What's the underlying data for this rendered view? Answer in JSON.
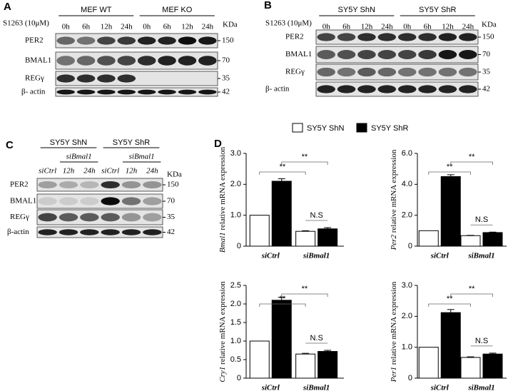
{
  "panels": [
    {
      "label": "A",
      "groups": [
        "MEF  WT",
        "MEF  KO"
      ],
      "treatment": "S1263 (10μM)",
      "lanes": [
        "0h",
        "6h",
        "12h",
        "24h",
        "0h",
        "6h",
        "12h",
        "24h"
      ],
      "kda_header": "KDa",
      "rows": [
        {
          "protein": "PER2",
          "kda": "150"
        },
        {
          "protein": "BMAL1",
          "kda": "70"
        },
        {
          "protein": "REGγ",
          "kda": "35"
        },
        {
          "protein": "β- actin",
          "kda": "42"
        }
      ]
    },
    {
      "label": "B",
      "groups": [
        "SY5Y ShN",
        "SY5Y ShR"
      ],
      "treatment": "S1263 (10μM)",
      "lanes": [
        "0h",
        "6h",
        "12h",
        "24h",
        "0h",
        "6h",
        "12h",
        "24h"
      ],
      "kda_header": "KDa",
      "rows": [
        {
          "protein": "PER2",
          "kda": "150"
        },
        {
          "protein": "BMAL1",
          "kda": "70"
        },
        {
          "protein": "REGγ",
          "kda": "35"
        },
        {
          "protein": "β- actin",
          "kda": "42"
        }
      ]
    },
    {
      "label": "C",
      "groups": [
        "SY5Y ShN",
        "SY5Y ShR"
      ],
      "subgroups": [
        "siBmal1",
        "siBmal1"
      ],
      "lanes": [
        "siCtrl",
        "12h",
        "24h",
        "siCtrl",
        "12h",
        "24h"
      ],
      "kda_header": "KDa",
      "rows": [
        {
          "protein": "PER2",
          "kda": "150"
        },
        {
          "protein": "BMAL1",
          "kda": "70"
        },
        {
          "protein": "REGγ",
          "kda": "35"
        },
        {
          "protein": "β-actin",
          "kda": "42"
        }
      ]
    }
  ],
  "panel_d_label": "D",
  "chart_data": [
    {
      "type": "bar",
      "y_label_gene": "Bmal1",
      "y_label": " relative mRNA expression",
      "categories": [
        "siCtrl",
        "siBmal1"
      ],
      "series": [
        {
          "name": "SY5Y ShN",
          "color": "#ffffff",
          "values": [
            1.0,
            0.48
          ],
          "errors": [
            0,
            0.02
          ]
        },
        {
          "name": "SY5Y ShR",
          "color": "#000000",
          "values": [
            2.1,
            0.56
          ],
          "errors": [
            0.08,
            0.04
          ]
        }
      ],
      "ylim": [
        0,
        3
      ],
      "yticks": [
        0,
        {
          "value": 1,
          "label": "1.0"
        },
        {
          "value": 2,
          "label": "2.0"
        },
        {
          "value": 3,
          "label": "3.0"
        }
      ],
      "annotations": [
        "**",
        "**",
        "N.S"
      ]
    },
    {
      "type": "bar",
      "y_label_gene": "Per2",
      "y_label": " relative mRNA expression",
      "categories": [
        "siCtrl",
        "siBmal1"
      ],
      "series": [
        {
          "color": "#ffffff",
          "values": [
            1.0,
            0.68
          ],
          "errors": [
            0,
            0.02
          ]
        },
        {
          "color": "#000000",
          "values": [
            4.5,
            0.88
          ],
          "errors": [
            0.12,
            0.03
          ]
        }
      ],
      "ylim": [
        0,
        6
      ],
      "yticks": [
        0,
        {
          "value": 2,
          "label": "2.0"
        },
        {
          "value": 4,
          "label": "4.0"
        },
        {
          "value": 6,
          "label": "6.0"
        }
      ],
      "annotations": [
        "**",
        "**",
        "N.S"
      ]
    },
    {
      "type": "bar",
      "y_label_gene": "Cry1",
      "y_label": " relative mRNA expression",
      "categories": [
        "siCtrl",
        "siBmal1"
      ],
      "series": [
        {
          "color": "#ffffff",
          "values": [
            1.0,
            0.65
          ],
          "errors": [
            0,
            0.02
          ]
        },
        {
          "color": "#000000",
          "values": [
            2.1,
            0.72
          ],
          "errors": [
            0.08,
            0.03
          ]
        }
      ],
      "ylim": [
        0,
        2.5
      ],
      "yticks": [
        0,
        0.5,
        {
          "value": 1,
          "label": "1.0"
        },
        1.5,
        {
          "value": 2,
          "label": "2.0"
        },
        2.5
      ],
      "annotations": [
        "**",
        "**",
        "N.S"
      ]
    },
    {
      "type": "bar",
      "y_label_gene": "Per1",
      "y_label": " relative mRNA expression",
      "categories": [
        "siCtrl",
        "siBmal1"
      ],
      "series": [
        {
          "color": "#ffffff",
          "values": [
            1.0,
            0.67
          ],
          "errors": [
            0,
            0.02
          ]
        },
        {
          "color": "#000000",
          "values": [
            2.12,
            0.78
          ],
          "errors": [
            0.1,
            0.03
          ]
        }
      ],
      "ylim": [
        0,
        3
      ],
      "yticks": [
        0,
        {
          "value": 1,
          "label": "1.0"
        },
        {
          "value": 2,
          "label": "2.0"
        },
        {
          "value": 3,
          "label": "3.0"
        }
      ],
      "annotations": [
        "**",
        "**",
        "N.S"
      ]
    }
  ]
}
